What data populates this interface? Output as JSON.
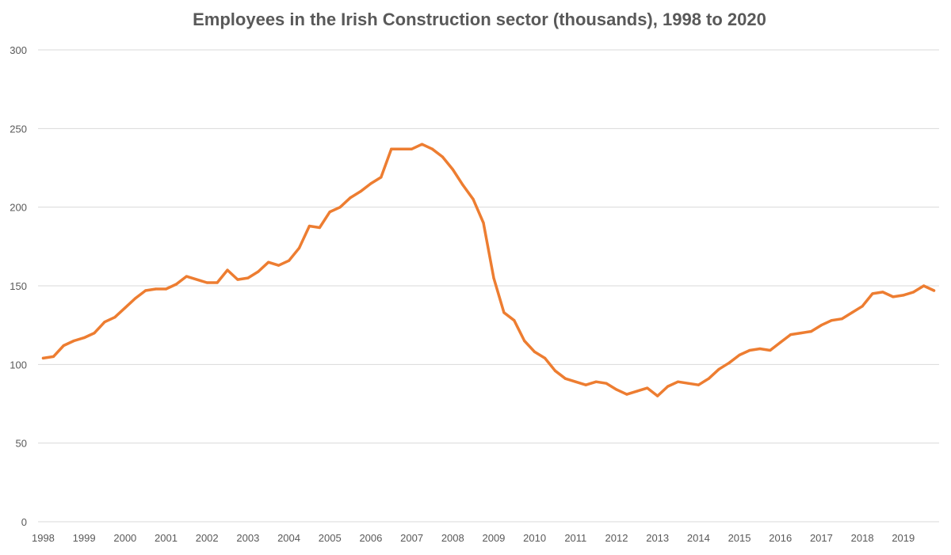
{
  "chart_data": {
    "type": "line",
    "title": "Employees in the Irish Construction sector (thousands), 1998 to 2020",
    "xlabel": "",
    "ylabel": "",
    "ylim": [
      0,
      300
    ],
    "y_ticks": [
      0,
      50,
      100,
      150,
      200,
      250,
      300
    ],
    "x_ticks": [
      "1998",
      "1999",
      "2000",
      "2001",
      "2002",
      "2003",
      "2004",
      "2005",
      "2006",
      "2007",
      "2008",
      "2009",
      "2010",
      "2011",
      "2012",
      "2013",
      "2014",
      "2015",
      "2016",
      "2017",
      "2018",
      "2019"
    ],
    "grid": "horizontal",
    "legend": "none",
    "x": [
      "1998Q1",
      "1998Q2",
      "1998Q3",
      "1998Q4",
      "1999Q1",
      "1999Q2",
      "1999Q3",
      "1999Q4",
      "2000Q1",
      "2000Q2",
      "2000Q3",
      "2000Q4",
      "2001Q1",
      "2001Q2",
      "2001Q3",
      "2001Q4",
      "2002Q1",
      "2002Q2",
      "2002Q3",
      "2002Q4",
      "2003Q1",
      "2003Q2",
      "2003Q3",
      "2003Q4",
      "2004Q1",
      "2004Q2",
      "2004Q3",
      "2004Q4",
      "2005Q1",
      "2005Q2",
      "2005Q3",
      "2005Q4",
      "2006Q1",
      "2006Q2",
      "2006Q3",
      "2006Q4",
      "2007Q1",
      "2007Q2",
      "2007Q3",
      "2007Q4",
      "2008Q1",
      "2008Q2",
      "2008Q3",
      "2008Q4",
      "2009Q1",
      "2009Q2",
      "2009Q3",
      "2009Q4",
      "2010Q1",
      "2010Q2",
      "2010Q3",
      "2010Q4",
      "2011Q1",
      "2011Q2",
      "2011Q3",
      "2011Q4",
      "2012Q1",
      "2012Q2",
      "2012Q3",
      "2012Q4",
      "2013Q1",
      "2013Q2",
      "2013Q3",
      "2013Q4",
      "2014Q1",
      "2014Q2",
      "2014Q3",
      "2014Q4",
      "2015Q1",
      "2015Q2",
      "2015Q3",
      "2015Q4",
      "2016Q1",
      "2016Q2",
      "2016Q3",
      "2016Q4",
      "2017Q1",
      "2017Q2",
      "2017Q3",
      "2017Q4",
      "2018Q1",
      "2018Q2",
      "2018Q3",
      "2018Q4",
      "2019Q1",
      "2019Q2",
      "2019Q3",
      "2019Q4"
    ],
    "series": [
      {
        "color": "#ED7D31",
        "values": [
          104,
          105,
          112,
          115,
          117,
          120,
          127,
          130,
          136,
          142,
          147,
          148,
          148,
          151,
          156,
          154,
          152,
          152,
          160,
          154,
          155,
          159,
          165,
          163,
          166,
          174,
          188,
          187,
          197,
          200,
          206,
          210,
          215,
          219,
          237,
          237,
          237,
          240,
          237,
          232,
          224,
          214,
          205,
          190,
          155,
          133,
          128,
          115,
          108,
          104,
          96,
          91,
          89,
          87,
          89,
          88,
          84,
          81,
          83,
          85,
          80,
          86,
          89,
          88,
          87,
          91,
          97,
          101,
          106,
          109,
          110,
          109,
          114,
          119,
          120,
          121,
          125,
          128,
          129,
          133,
          137,
          145,
          146,
          143,
          144,
          146,
          150,
          147
        ]
      }
    ]
  }
}
